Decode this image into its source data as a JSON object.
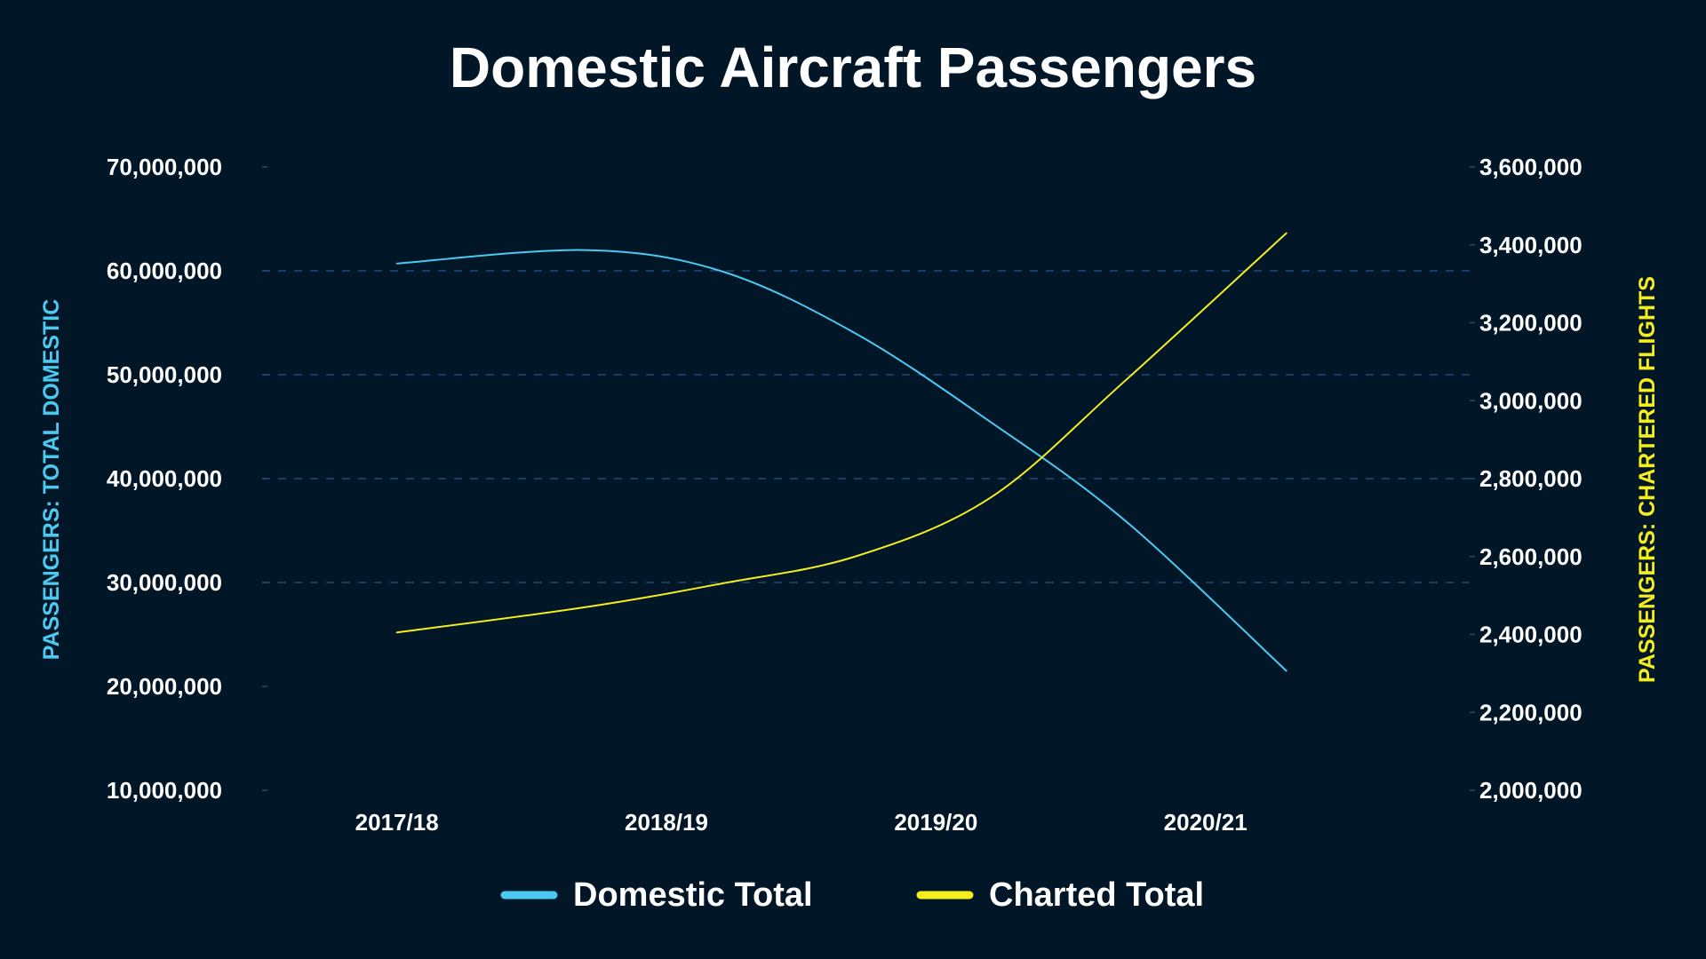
{
  "chart_data": {
    "type": "line",
    "title": "Domestic Aircraft Passengers",
    "categories": [
      "2017/18",
      "2018/19",
      "2019/20",
      "2020/21"
    ],
    "x_range": [
      2017.3,
      2021.8
    ],
    "series": [
      {
        "name": "Domestic Total",
        "axis": "left",
        "color": "#4cc9f0",
        "x": [
          2017.8,
          2018.5,
          2019.0,
          2019.5,
          2020.0,
          2020.5,
          2021.1
        ],
        "values": [
          60700000,
          62000000,
          60000000,
          54000000,
          45500000,
          36000000,
          21500000
        ]
      },
      {
        "name": "Charted Total",
        "axis": "right",
        "color": "#f5ee1f",
        "x": [
          2017.8,
          2018.5,
          2019.0,
          2019.5,
          2020.0,
          2020.5,
          2021.1
        ],
        "values": [
          2405000,
          2470000,
          2530000,
          2600000,
          2750000,
          3050000,
          3430000
        ]
      }
    ],
    "y_left": {
      "label": "PASSENGERS: TOTAL DOMESTIC",
      "range": [
        10000000,
        70000000
      ],
      "ticks": [
        {
          "value": 70000000,
          "label": "70,000,000"
        },
        {
          "value": 60000000,
          "label": "60,000,000"
        },
        {
          "value": 50000000,
          "label": "50,000,000"
        },
        {
          "value": 40000000,
          "label": "40,000,000"
        },
        {
          "value": 30000000,
          "label": "30,000,000"
        },
        {
          "value": 20000000,
          "label": "20,000,000"
        },
        {
          "value": 10000000,
          "label": "10,000,000"
        }
      ],
      "color": "#4cc9f0"
    },
    "y_right": {
      "label": "PASSENGERS: CHARTERED FLIGHTS",
      "range": [
        2000000,
        3600000
      ],
      "ticks": [
        {
          "value": 3600000,
          "label": "3,600,000"
        },
        {
          "value": 3400000,
          "label": "3,400,000"
        },
        {
          "value": 3200000,
          "label": "3,200,000"
        },
        {
          "value": 3000000,
          "label": "3,000,000"
        },
        {
          "value": 2800000,
          "label": "2,800,000"
        },
        {
          "value": 2600000,
          "label": "2,600,000"
        },
        {
          "value": 2400000,
          "label": "2,400,000"
        },
        {
          "value": 2200000,
          "label": "2,200,000"
        },
        {
          "value": 2000000,
          "label": "2,000,000"
        }
      ],
      "color": "#f5ee1f"
    },
    "grid": true,
    "grid_values": [
      60000000,
      50000000,
      40000000,
      30000000
    ],
    "legend": {
      "position": "bottom",
      "items": [
        {
          "label": "Domestic Total",
          "color": "#4cc9f0"
        },
        {
          "label": "Charted Total",
          "color": "#f5ee1f"
        }
      ]
    }
  },
  "colors": {
    "background": "#011627",
    "text": "#ffffff",
    "grid": "#1f4a7a"
  }
}
